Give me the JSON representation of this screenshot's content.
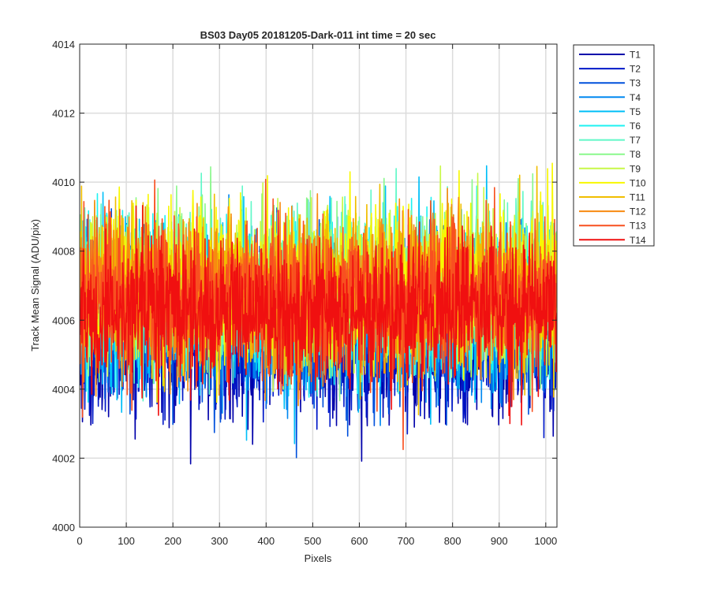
{
  "chart_data": {
    "type": "line",
    "title": "BS03 Day05 20181205-Dark-011 int time = 20 sec",
    "xlabel": "Pixels",
    "ylabel": "Track Mean Signal (ADU/pix)",
    "xlim": [
      0,
      1024
    ],
    "ylim": [
      4000,
      4014
    ],
    "xticks": [
      0,
      100,
      200,
      300,
      400,
      500,
      600,
      700,
      800,
      900,
      1000
    ],
    "yticks": [
      4000,
      4002,
      4004,
      4006,
      4008,
      4010,
      4012,
      4014
    ],
    "grid": true,
    "legend_position": "outside-top-right",
    "x_count": 1024,
    "noise_model": "per-pixel Gaussian noise around series mean",
    "series": [
      {
        "name": "T1",
        "color": "#0000aa",
        "mean": 4005.3,
        "std": 1.1
      },
      {
        "name": "T2",
        "color": "#0018c8",
        "mean": 4005.6,
        "std": 1.1
      },
      {
        "name": "T3",
        "color": "#0050dc",
        "mean": 4005.9,
        "std": 1.1
      },
      {
        "name": "T4",
        "color": "#0088f0",
        "mean": 4006.2,
        "std": 1.1
      },
      {
        "name": "T5",
        "color": "#00bff8",
        "mean": 4006.5,
        "std": 1.1
      },
      {
        "name": "T6",
        "color": "#1ef2f2",
        "mean": 4006.7,
        "std": 1.1
      },
      {
        "name": "T7",
        "color": "#60f8c8",
        "mean": 4006.9,
        "std": 1.1
      },
      {
        "name": "T8",
        "color": "#8af88c",
        "mean": 4007.0,
        "std": 1.1
      },
      {
        "name": "T9",
        "color": "#c8f848",
        "mean": 4007.0,
        "std": 1.1
      },
      {
        "name": "T10",
        "color": "#f8f800",
        "mean": 4007.0,
        "std": 1.1
      },
      {
        "name": "T11",
        "color": "#f0be00",
        "mean": 4006.9,
        "std": 1.1
      },
      {
        "name": "T12",
        "color": "#f88a10",
        "mean": 4006.8,
        "std": 1.1
      },
      {
        "name": "T13",
        "color": "#f85020",
        "mean": 4006.6,
        "std": 1.1
      },
      {
        "name": "T14",
        "color": "#f01010",
        "mean": 4006.3,
        "std": 1.0
      }
    ]
  }
}
